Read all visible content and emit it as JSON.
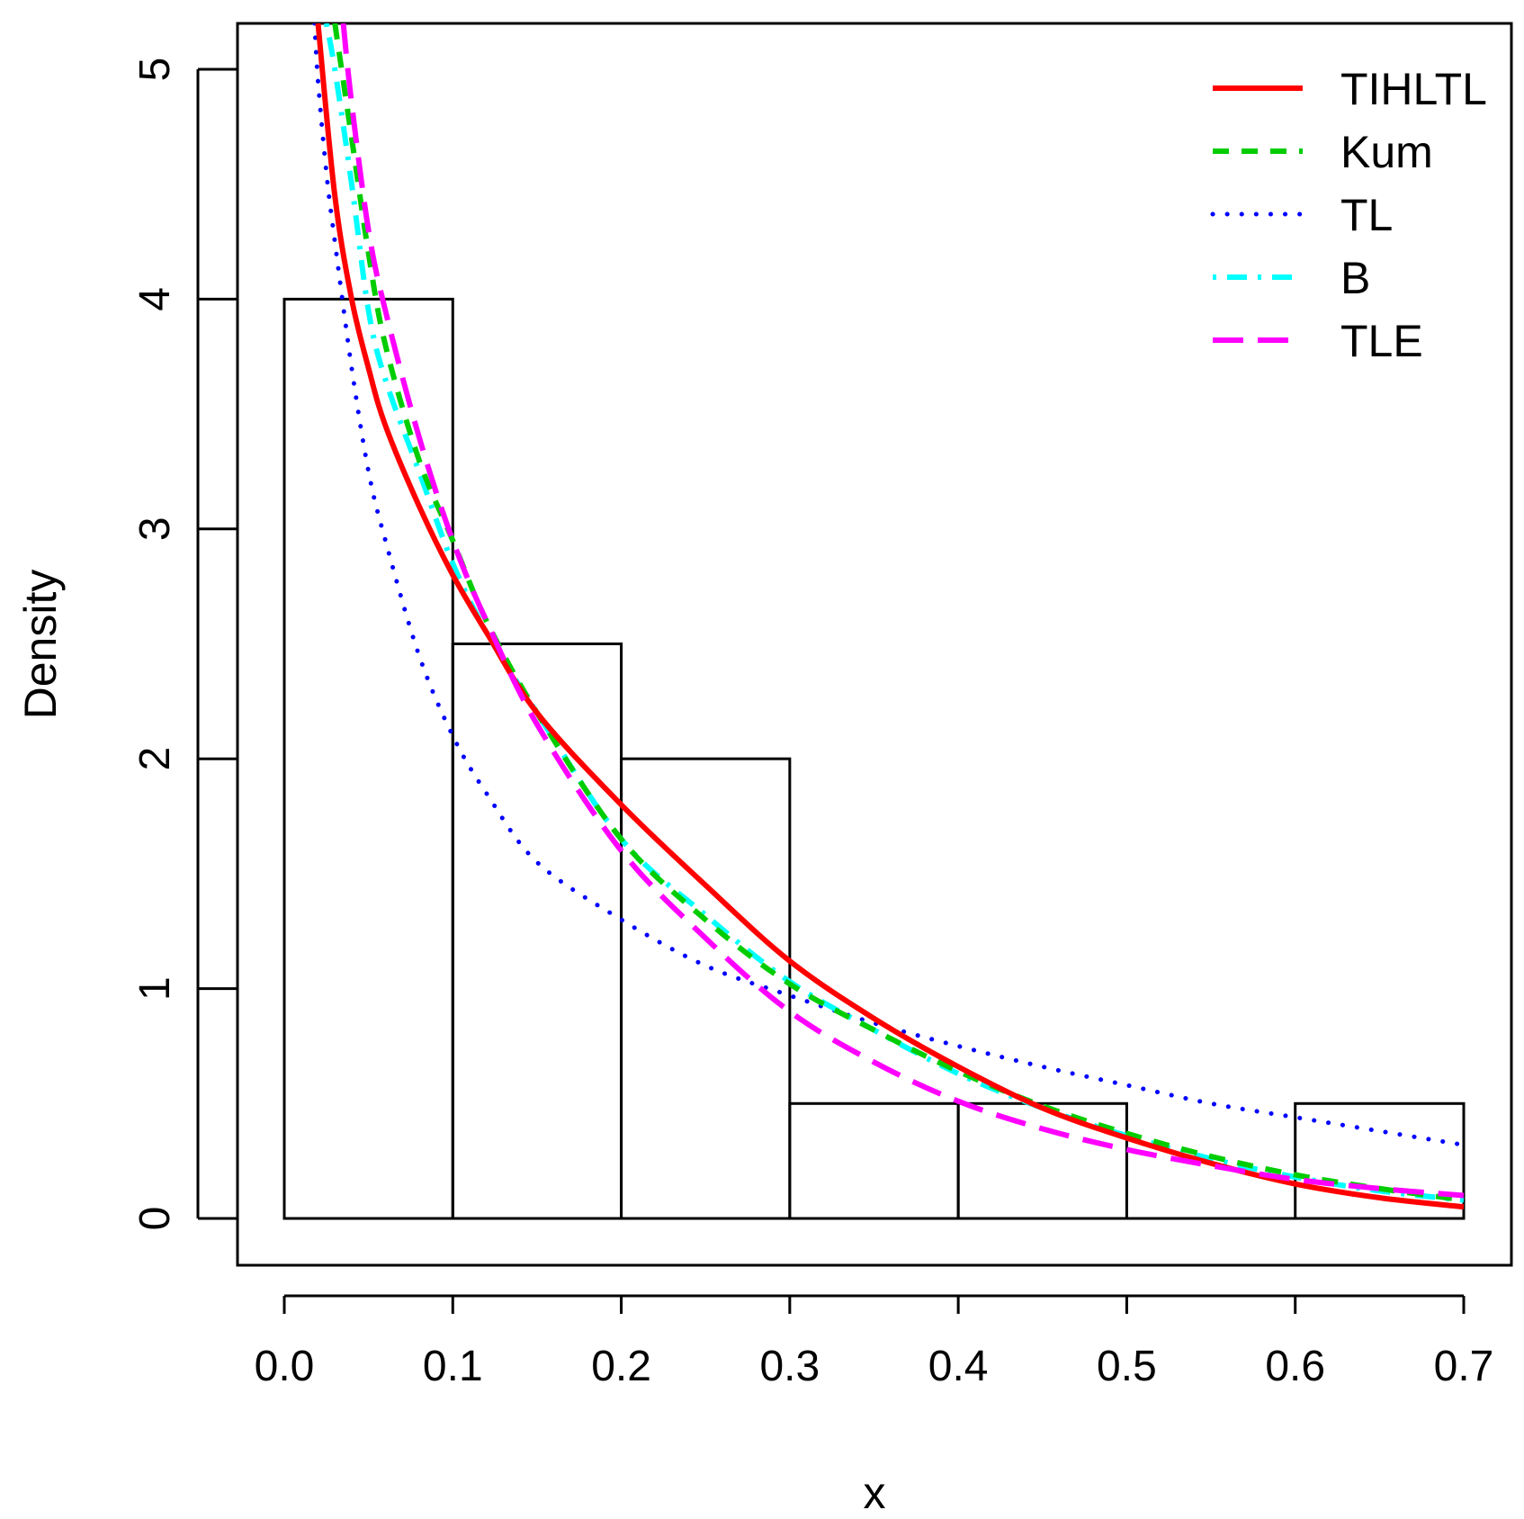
{
  "chart_data": {
    "type": "histogram",
    "xlabel": "x",
    "ylabel": "Density",
    "xlim": [
      0,
      0.7
    ],
    "ylim": [
      0,
      5.2
    ],
    "xticks": [
      "0.0",
      "0.1",
      "0.2",
      "0.3",
      "0.4",
      "0.5",
      "0.6",
      "0.7"
    ],
    "yticks": [
      "0",
      "1",
      "2",
      "3",
      "4",
      "5"
    ],
    "grid": false,
    "legend": "top-right",
    "bins": [
      {
        "x0": 0.0,
        "x1": 0.1,
        "density": 4.0
      },
      {
        "x0": 0.1,
        "x1": 0.2,
        "density": 2.5
      },
      {
        "x0": 0.2,
        "x1": 0.3,
        "density": 2.0
      },
      {
        "x0": 0.3,
        "x1": 0.4,
        "density": 0.5
      },
      {
        "x0": 0.4,
        "x1": 0.5,
        "density": 0.5
      },
      {
        "x0": 0.5,
        "x1": 0.6,
        "density": 0.0
      },
      {
        "x0": 0.6,
        "x1": 0.7,
        "density": 0.5
      }
    ],
    "series": [
      {
        "name": "TIHLTL",
        "color": "#ff0000",
        "style": "solid",
        "x": [
          0.02,
          0.03,
          0.04,
          0.05,
          0.06,
          0.08,
          0.1,
          0.12,
          0.15,
          0.2,
          0.25,
          0.3,
          0.35,
          0.4,
          0.45,
          0.5,
          0.55,
          0.6,
          0.65,
          0.7
        ],
        "y": [
          5.2,
          4.45,
          4.0,
          3.7,
          3.45,
          3.1,
          2.8,
          2.55,
          2.2,
          1.8,
          1.45,
          1.12,
          0.87,
          0.66,
          0.48,
          0.35,
          0.24,
          0.15,
          0.09,
          0.05
        ]
      },
      {
        "name": "Kum",
        "color": "#00cd00",
        "style": "dashed",
        "x": [
          0.03,
          0.04,
          0.05,
          0.06,
          0.08,
          0.1,
          0.12,
          0.15,
          0.2,
          0.25,
          0.3,
          0.35,
          0.4,
          0.45,
          0.5,
          0.55,
          0.6,
          0.65,
          0.7
        ],
        "y": [
          5.2,
          4.7,
          4.2,
          3.8,
          3.3,
          2.95,
          2.6,
          2.2,
          1.65,
          1.3,
          1.02,
          0.82,
          0.64,
          0.49,
          0.37,
          0.27,
          0.19,
          0.13,
          0.08
        ]
      },
      {
        "name": "TL",
        "color": "#0000ff",
        "style": "dotted",
        "x": [
          0.018,
          0.02,
          0.025,
          0.03,
          0.04,
          0.05,
          0.06,
          0.08,
          0.1,
          0.12,
          0.15,
          0.2,
          0.25,
          0.3,
          0.35,
          0.4,
          0.45,
          0.5,
          0.55,
          0.6,
          0.65,
          0.7
        ],
        "y": [
          5.2,
          4.95,
          4.55,
          4.25,
          3.7,
          3.25,
          2.95,
          2.45,
          2.1,
          1.85,
          1.55,
          1.3,
          1.1,
          0.97,
          0.85,
          0.75,
          0.66,
          0.58,
          0.5,
          0.44,
          0.38,
          0.32
        ]
      },
      {
        "name": "B",
        "color": "#00ffff",
        "style": "dashdot",
        "x": [
          0.025,
          0.03,
          0.04,
          0.05,
          0.06,
          0.08,
          0.1,
          0.12,
          0.15,
          0.2,
          0.25,
          0.3,
          0.35,
          0.4,
          0.45,
          0.5,
          0.55,
          0.6,
          0.65,
          0.7
        ],
        "y": [
          5.2,
          5.0,
          4.5,
          3.95,
          3.65,
          3.25,
          2.85,
          2.55,
          2.2,
          1.65,
          1.32,
          1.03,
          0.82,
          0.63,
          0.48,
          0.36,
          0.26,
          0.18,
          0.12,
          0.08
        ]
      },
      {
        "name": "TLE",
        "color": "#ff00ff",
        "style": "longdash",
        "x": [
          0.035,
          0.04,
          0.05,
          0.06,
          0.08,
          0.1,
          0.12,
          0.15,
          0.2,
          0.25,
          0.3,
          0.35,
          0.4,
          0.45,
          0.5,
          0.55,
          0.6,
          0.65,
          0.7
        ],
        "y": [
          5.2,
          4.85,
          4.3,
          3.95,
          3.4,
          2.95,
          2.6,
          2.15,
          1.6,
          1.22,
          0.9,
          0.68,
          0.51,
          0.39,
          0.3,
          0.23,
          0.17,
          0.13,
          0.1
        ]
      }
    ]
  }
}
